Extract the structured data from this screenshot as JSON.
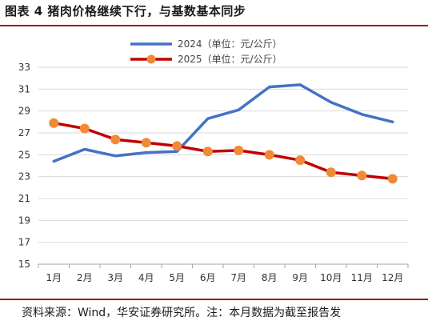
{
  "figure": {
    "title": "图表 4 猪肉价格继续下行，与基数基本同步",
    "source": "资料来源：Wind，华安证券研究所。注：本月数据为截至报告发"
  },
  "colors": {
    "rule": "#9a1c1c",
    "series_2024": "#4472c4",
    "series_2025_line": "#c00000",
    "series_2025_marker": "#f08a36",
    "grid": "#d9d9d9"
  },
  "chart_data": {
    "type": "line",
    "categories": [
      "1月",
      "2月",
      "3月",
      "4月",
      "5月",
      "6月",
      "7月",
      "8月",
      "9月",
      "10月",
      "11月",
      "12月"
    ],
    "ylim": [
      15,
      33
    ],
    "yticks": [
      15,
      17,
      19,
      21,
      23,
      25,
      27,
      29,
      31,
      33
    ],
    "grid": "horizontal",
    "legend": "top-center",
    "series": [
      {
        "name": "2024（单位：元/公斤）",
        "values": [
          24.4,
          25.5,
          24.9,
          25.2,
          25.3,
          28.3,
          29.1,
          31.2,
          31.4,
          29.8,
          28.7,
          28.0
        ]
      },
      {
        "name": "2025（单位：元/公斤）",
        "values": [
          27.9,
          27.4,
          26.4,
          26.1,
          25.8,
          25.3,
          25.4,
          25.0,
          24.5,
          23.4,
          23.1,
          22.8
        ]
      }
    ]
  }
}
